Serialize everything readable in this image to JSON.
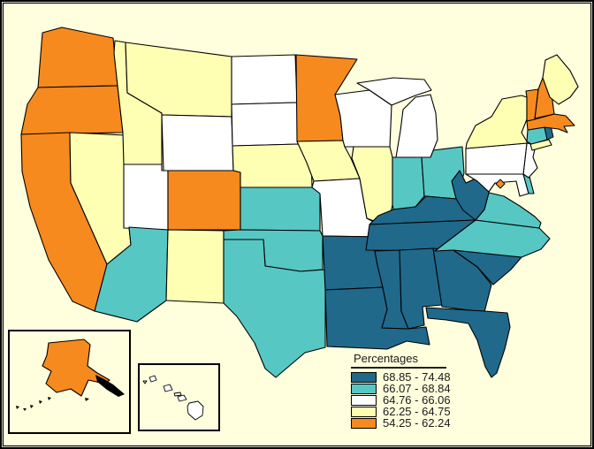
{
  "legend": {
    "title": "Percentages",
    "classes": [
      {
        "label": "68.85 - 74.48",
        "color": "#20698B"
      },
      {
        "label": "66.07 - 68.84",
        "color": "#57C7C4"
      },
      {
        "label": "64.76 - 66.06",
        "color": "#FFFFFF"
      },
      {
        "label": "62.25 - 64.75",
        "color": "#FFFFB4"
      },
      {
        "label": "54.25 - 62.24",
        "color": "#F68A1E"
      }
    ]
  },
  "map": {
    "background": "#FFFFDE",
    "outline_color": "#000000",
    "frame_color": "#000000",
    "states": {
      "WA": 4,
      "OR": 4,
      "CA": 4,
      "NV": 3,
      "ID": 3,
      "MT": 3,
      "WY": 2,
      "UT": 2,
      "CO": 4,
      "AZ": 1,
      "NM": 3,
      "ND": 2,
      "SD": 2,
      "NE": 3,
      "KS": 1,
      "OK": 1,
      "TX": 1,
      "MN": 4,
      "IA": 3,
      "MO": 2,
      "AR": 0,
      "LA": 0,
      "WI": 2,
      "IL": 3,
      "IN": 1,
      "OH": 1,
      "MI": 2,
      "KY": 0,
      "TN": 0,
      "MS": 0,
      "AL": 0,
      "GA": 0,
      "FL": 0,
      "SC": 0,
      "NC": 1,
      "VA": 1,
      "WV": 0,
      "MD": 2,
      "DE": 1,
      "NJ": 2,
      "PA": 2,
      "NY": 3,
      "CT": 1,
      "RI": 0,
      "MA": 4,
      "VT": 4,
      "NH": 4,
      "ME": 3,
      "AK": 4,
      "HI": 2,
      "DC": 4
    }
  }
}
